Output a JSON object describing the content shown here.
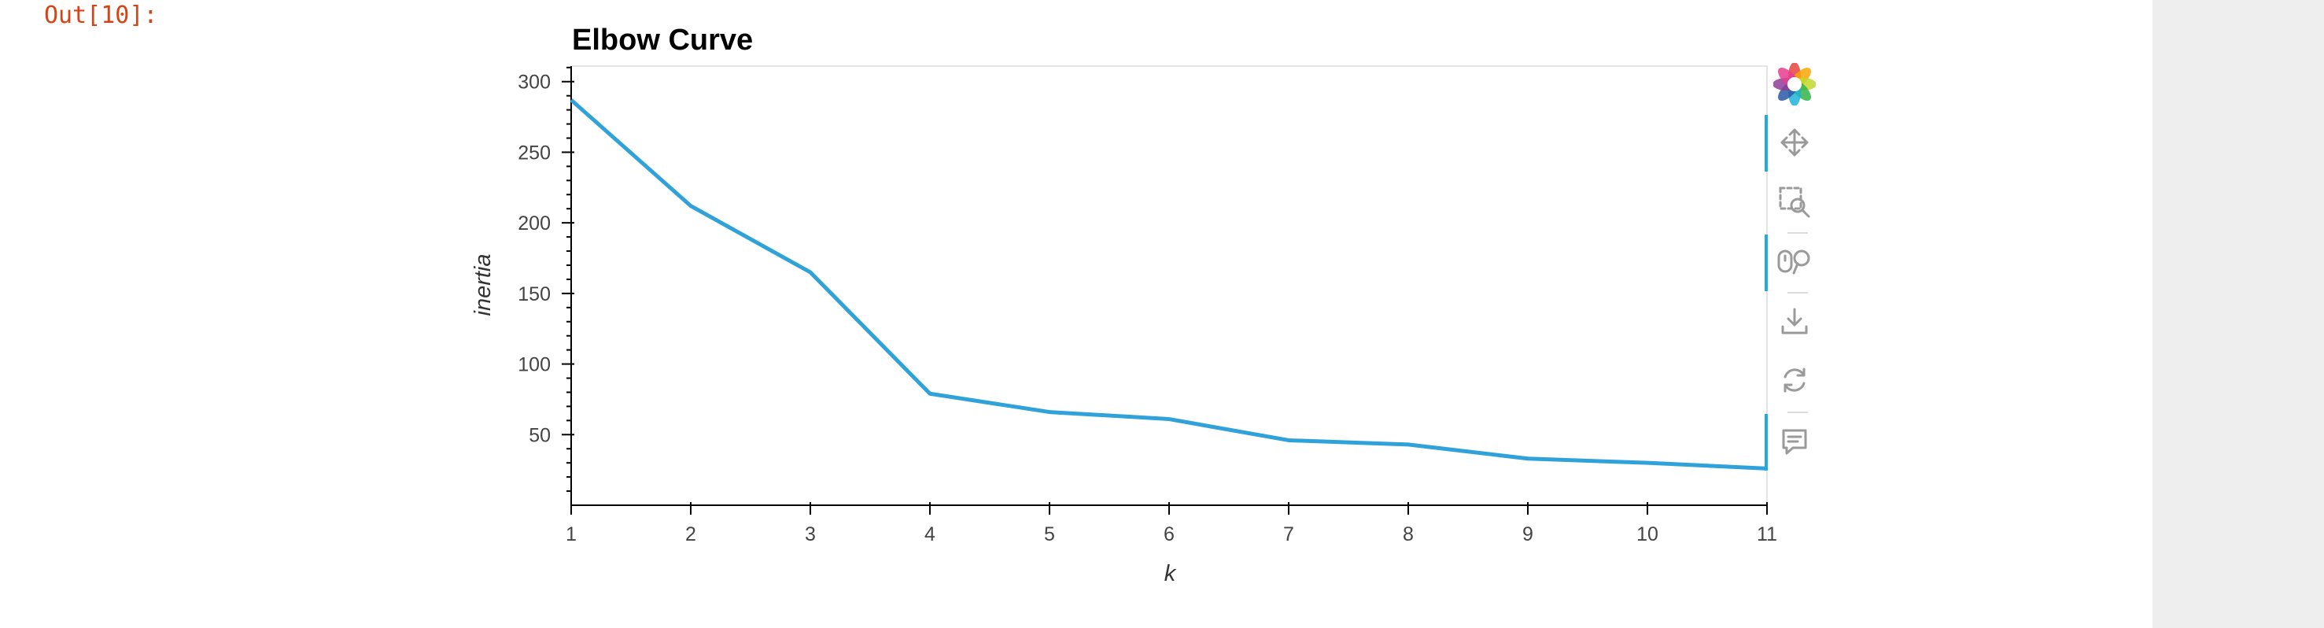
{
  "cell": {
    "prompt": "Out[10]:"
  },
  "chart_data": {
    "type": "line",
    "title": "Elbow Curve",
    "xlabel": "k",
    "ylabel": "inertia",
    "x": [
      1,
      2,
      3,
      4,
      5,
      6,
      7,
      8,
      9,
      10,
      11
    ],
    "series": [
      {
        "values": [
          287,
          212,
          165,
          79,
          66,
          61,
          46,
          43,
          33,
          30,
          26
        ]
      }
    ],
    "xticks": [
      1,
      2,
      3,
      4,
      5,
      6,
      7,
      8,
      9,
      10,
      11
    ],
    "yticks": [
      50,
      100,
      150,
      200,
      250,
      300
    ],
    "xlim": [
      1,
      11
    ],
    "ylim": [
      0,
      311
    ],
    "grid": false,
    "line_color": "#30a2da"
  },
  "toolbar": {
    "logo": "bokeh-logo-icon",
    "tools": [
      {
        "icon": "pan-move-icon",
        "active": true
      },
      {
        "icon": "box-zoom-icon",
        "active": false
      },
      {
        "icon": "wheel-zoom-icon",
        "active": true
      },
      {
        "icon": "save-download-icon",
        "active": false
      },
      {
        "icon": "reset-icon",
        "active": false
      },
      {
        "icon": "hover-tooltip-icon",
        "active": true
      }
    ]
  }
}
